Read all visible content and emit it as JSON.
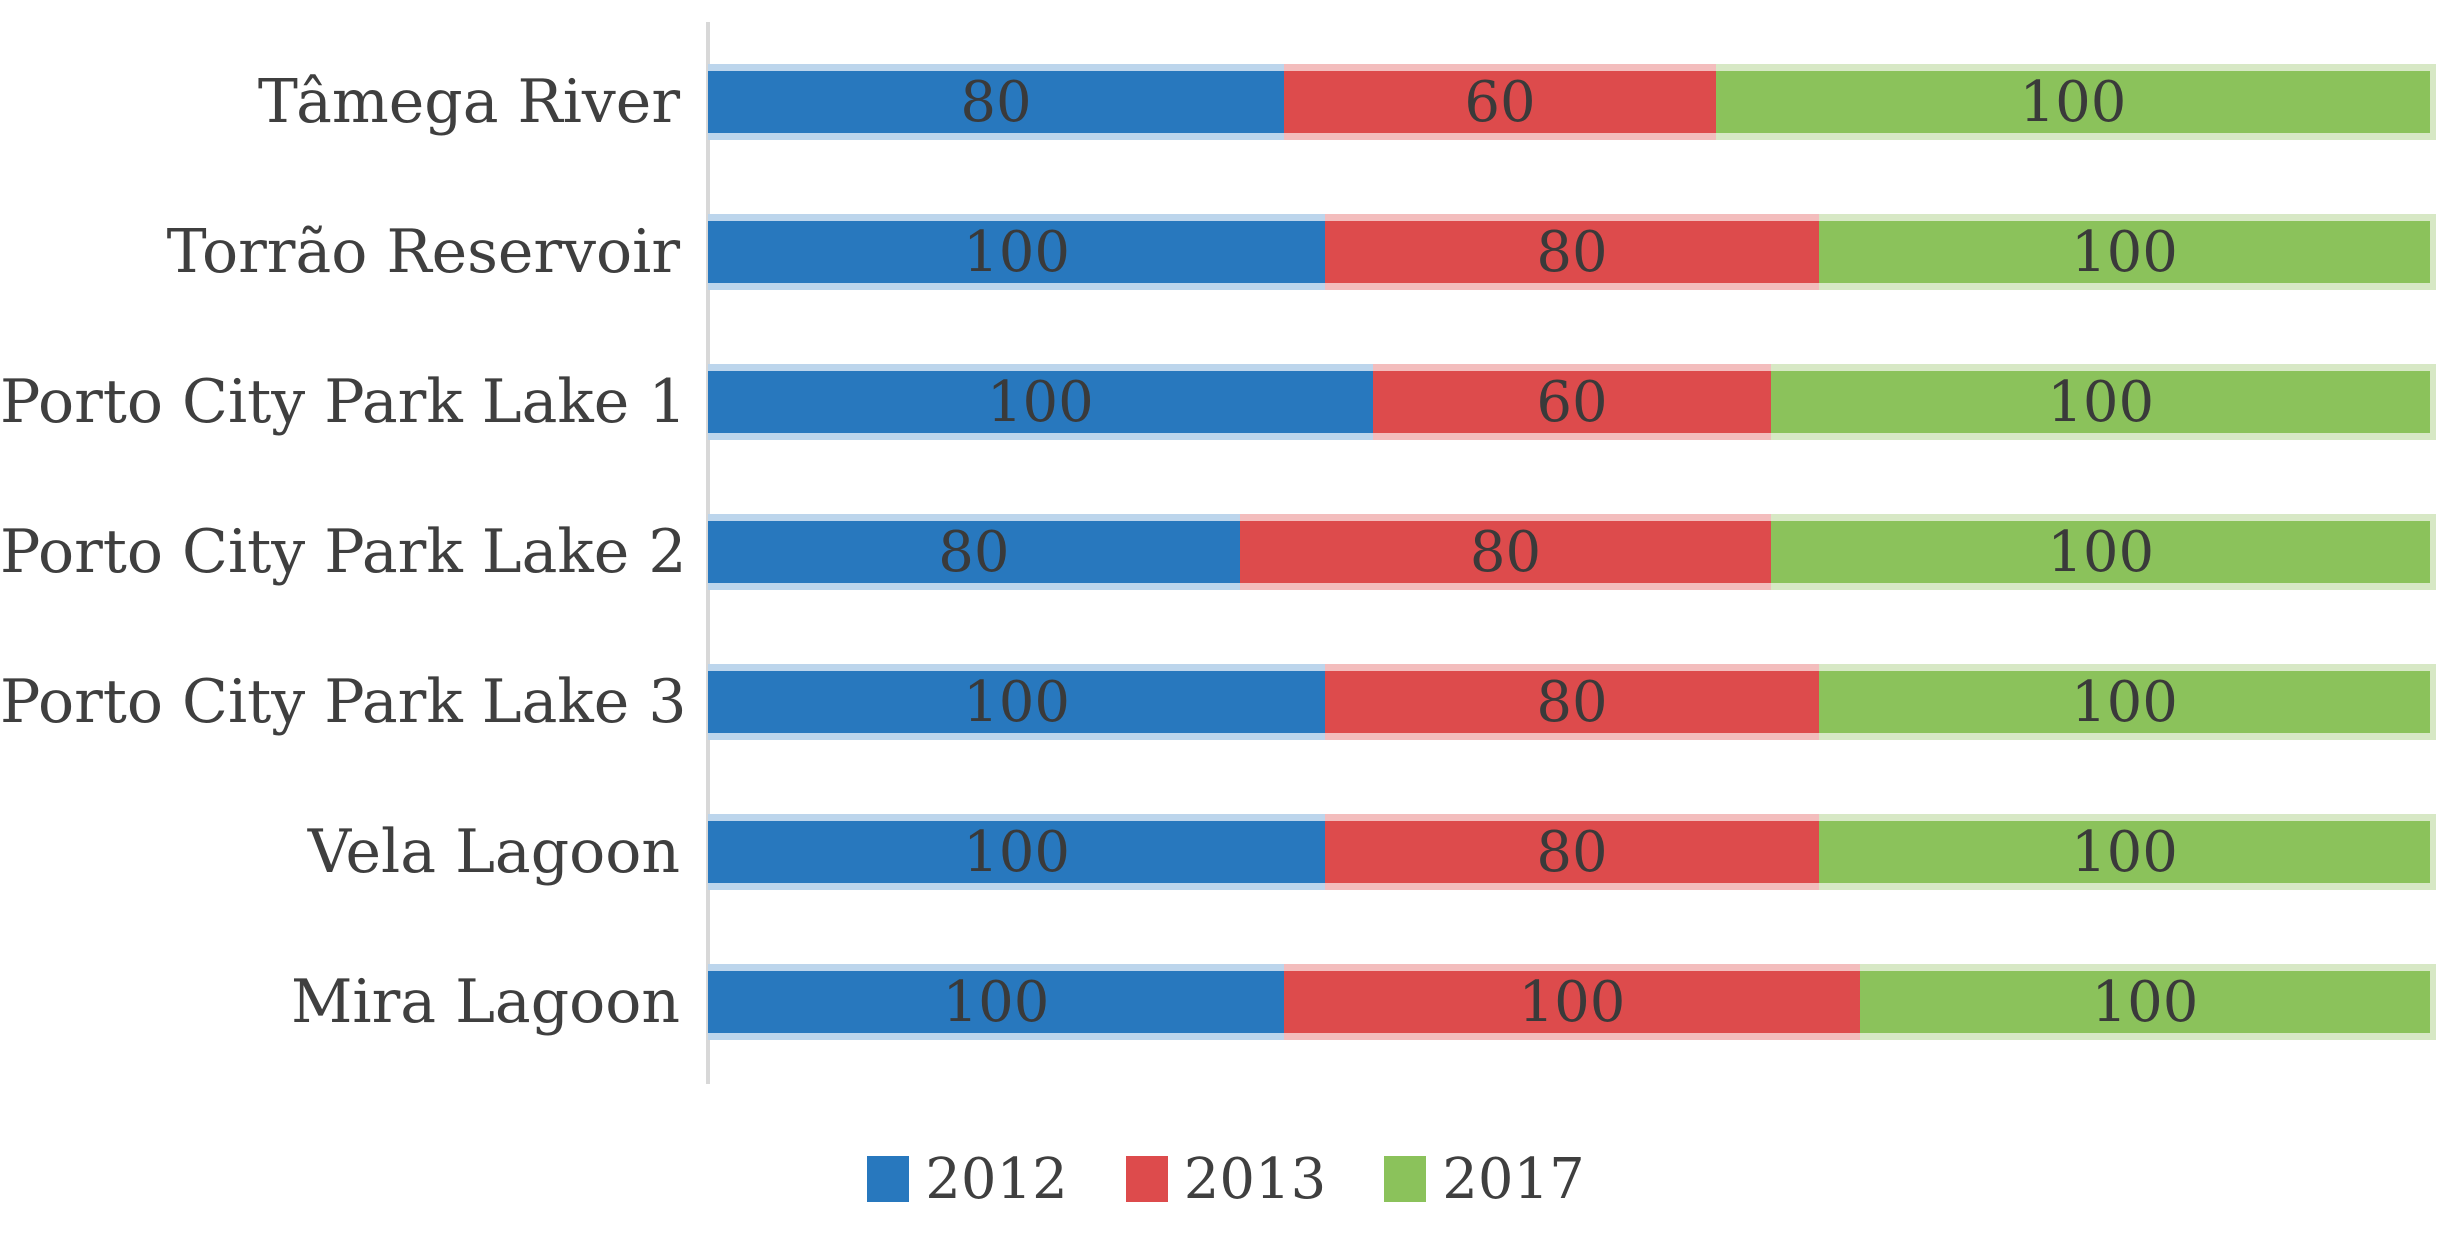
{
  "chart_data": {
    "type": "bar",
    "orientation": "horizontal",
    "stacked": true,
    "percent_stacked": true,
    "title": "",
    "xlabel": "",
    "ylabel": "",
    "grid": false,
    "legend_position": "bottom",
    "axis_line_color": "#d8d8d8",
    "category_label_color": "#3f3f3f",
    "value_label_color": "#3a3a3a",
    "categories": [
      "Tâmega River",
      "Torrão Reservoir",
      "Porto City Park Lake 1",
      "Porto City Park Lake 2",
      "Porto City Park Lake 3",
      "Vela Lagoon",
      "Mira Lagoon"
    ],
    "series": [
      {
        "name": "2012",
        "color": "#2878be",
        "tint": "#bcd5ec",
        "values": [
          80,
          100,
          100,
          80,
          100,
          100,
          100
        ]
      },
      {
        "name": "2013",
        "color": "#dd4b4c",
        "tint": "#f3bdbd",
        "values": [
          60,
          80,
          60,
          80,
          80,
          80,
          100
        ]
      },
      {
        "name": "2017",
        "color": "#8bc25b",
        "tint": "#d7e8c5",
        "values": [
          100,
          100,
          100,
          100,
          100,
          100,
          100
        ]
      }
    ]
  }
}
